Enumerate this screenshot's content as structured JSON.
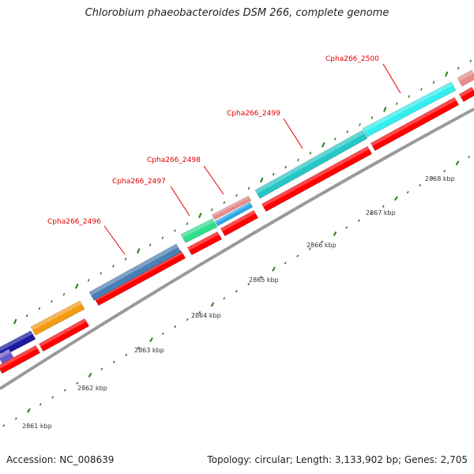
{
  "title": "Chlorobium phaeobacteroides DSM 266, complete genome",
  "footer": {
    "accession": "Accession: NC_008639",
    "topology": "Topology: circular; Length: 3,133,902 bp; Genes: 2,705"
  },
  "ruler": {
    "ticks": [
      {
        "kbp": 2861,
        "label": "2861 kbp"
      },
      {
        "kbp": 2862,
        "label": "2862 kbp"
      },
      {
        "kbp": 2863,
        "label": "2863 kbp"
      },
      {
        "kbp": 2864,
        "label": "2864 kbp"
      },
      {
        "kbp": 2865,
        "label": "2865 kbp"
      },
      {
        "kbp": 2866,
        "label": "2866 kbp"
      },
      {
        "kbp": 2867,
        "label": "2867 kbp"
      },
      {
        "kbp": 2868,
        "label": "2868 kbp"
      }
    ]
  },
  "colors": {
    "cds": "#ff0000",
    "backbone": "#9a9a9a",
    "tick": "#2a7a1a",
    "label": "#e00000"
  },
  "genes": [
    {
      "id": "g_a",
      "label": "",
      "color": "#1a1aa0"
    },
    {
      "id": "g_a2",
      "label": "",
      "color": "#6a5acd"
    },
    {
      "id": "g_b",
      "label": "",
      "color": "#f39c12"
    },
    {
      "id": "Cpha266_2496",
      "label": "Cpha266_2496",
      "color": "#4a7fb5"
    },
    {
      "id": "Cpha266_2497",
      "label": "Cpha266_2497",
      "color": "#2ee08a"
    },
    {
      "id": "Cpha266_2498",
      "label": "Cpha266_2498",
      "color": "#e88a8a"
    },
    {
      "id": "Cpha266_2498b",
      "label": "",
      "color": "#29a8e8"
    },
    {
      "id": "Cpha266_2499",
      "label": "Cpha266_2499",
      "color": "#26c6c6"
    },
    {
      "id": "Cpha266_2500",
      "label": "Cpha266_2500",
      "color": "#33eeee"
    },
    {
      "id": "g_next",
      "label": "",
      "color": "#e88a8a"
    }
  ]
}
